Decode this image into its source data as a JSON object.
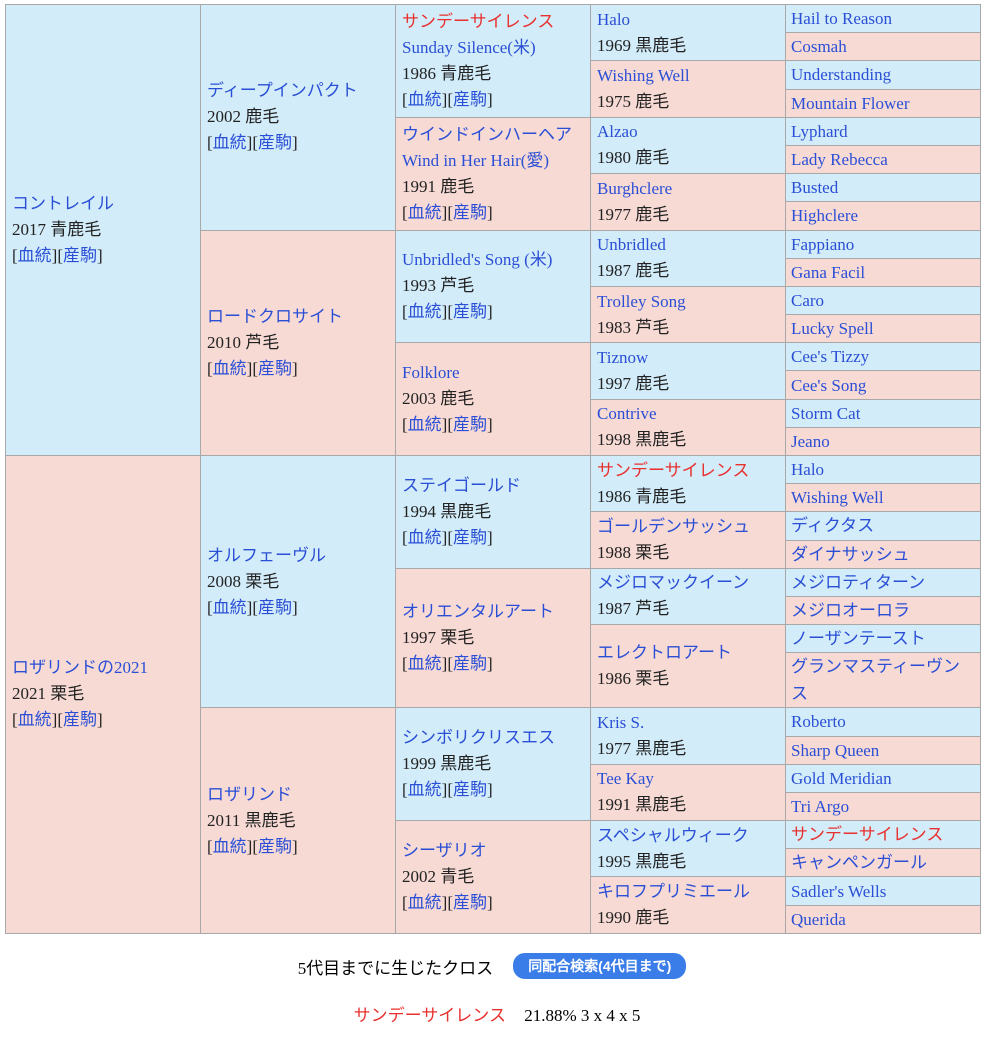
{
  "link_labels": {
    "pedigree": "血統",
    "progeny": "産駒"
  },
  "colors": {
    "male_bg": "#d2ecf9",
    "female_bg": "#f7dad4",
    "link": "#2a4fd6",
    "cross": "#e8302e",
    "button": "#3b7de8"
  },
  "gen1": [
    {
      "name": "コントレイル",
      "info": "2017 青鹿毛"
    },
    {
      "name": "ロザリンドの2021",
      "info": "2021 栗毛"
    }
  ],
  "gen2": [
    {
      "name": "ディープインパクト",
      "info": "2002 鹿毛"
    },
    {
      "name": "ロードクロサイト",
      "info": "2010 芦毛"
    },
    {
      "name": "オルフェーヴル",
      "info": "2008 栗毛"
    },
    {
      "name": "ロザリンド",
      "info": "2011 黒鹿毛"
    }
  ],
  "gen3": [
    {
      "name": "サンデーサイレンス",
      "red": true,
      "sub": "Sunday Silence(米)",
      "info": "1986 青鹿毛"
    },
    {
      "name": "ウインドインハーヘア",
      "sub": "Wind in Her Hair(愛)",
      "info": "1991 鹿毛"
    },
    {
      "name": "Unbridled's Song (米)",
      "info": "1993 芦毛"
    },
    {
      "name": "Folklore",
      "info": "2003 鹿毛"
    },
    {
      "name": "ステイゴールド",
      "info": "1994 黒鹿毛"
    },
    {
      "name": "オリエンタルアート",
      "info": "1997 栗毛"
    },
    {
      "name": "シンボリクリスエス",
      "info": "1999 黒鹿毛"
    },
    {
      "name": "シーザリオ",
      "info": "2002 青毛"
    }
  ],
  "gen4": [
    {
      "name": "Halo",
      "info": "1969 黒鹿毛"
    },
    {
      "name": "Wishing Well",
      "info": "1975 鹿毛"
    },
    {
      "name": "Alzao",
      "info": "1980 鹿毛"
    },
    {
      "name": "Burghclere",
      "info": "1977 鹿毛"
    },
    {
      "name": "Unbridled",
      "info": "1987 鹿毛"
    },
    {
      "name": "Trolley Song",
      "info": "1983 芦毛"
    },
    {
      "name": "Tiznow",
      "info": "1997 鹿毛"
    },
    {
      "name": "Contrive",
      "info": "1998 黒鹿毛"
    },
    {
      "name": "サンデーサイレンス",
      "red": true,
      "info": "1986 青鹿毛"
    },
    {
      "name": "ゴールデンサッシュ",
      "info": "1988 栗毛"
    },
    {
      "name": "メジロマックイーン",
      "info": "1987 芦毛"
    },
    {
      "name": "エレクトロアート",
      "info": "1986 栗毛"
    },
    {
      "name": "Kris S.",
      "info": "1977 黒鹿毛"
    },
    {
      "name": "Tee Kay",
      "info": "1991 黒鹿毛"
    },
    {
      "name": "スペシャルウィーク",
      "info": "1995 黒鹿毛"
    },
    {
      "name": "キロフプリミエール",
      "info": "1990 鹿毛"
    }
  ],
  "gen5": [
    {
      "name": "Hail to Reason"
    },
    {
      "name": "Cosmah"
    },
    {
      "name": "Understanding"
    },
    {
      "name": "Mountain Flower"
    },
    {
      "name": "Lyphard"
    },
    {
      "name": "Lady Rebecca"
    },
    {
      "name": "Busted"
    },
    {
      "name": "Highclere"
    },
    {
      "name": "Fappiano"
    },
    {
      "name": "Gana Facil"
    },
    {
      "name": "Caro"
    },
    {
      "name": "Lucky Spell"
    },
    {
      "name": "Cee's Tizzy"
    },
    {
      "name": "Cee's Song"
    },
    {
      "name": "Storm Cat"
    },
    {
      "name": "Jeano"
    },
    {
      "name": "Halo"
    },
    {
      "name": "Wishing Well"
    },
    {
      "name": "ディクタス"
    },
    {
      "name": "ダイナサッシュ"
    },
    {
      "name": "メジロティターン"
    },
    {
      "name": "メジロオーロラ"
    },
    {
      "name": "ノーザンテースト"
    },
    {
      "name": "グランマスティーヴンス"
    },
    {
      "name": "Roberto"
    },
    {
      "name": "Sharp Queen"
    },
    {
      "name": "Gold Meridian"
    },
    {
      "name": "Tri Argo"
    },
    {
      "name": "サンデーサイレンス",
      "red": true
    },
    {
      "name": "キャンペンガール"
    },
    {
      "name": "Sadler's Wells"
    },
    {
      "name": "Querida"
    }
  ],
  "footer": {
    "cross_heading": "5代目までに生じたクロス",
    "search_button": "同配合検索(4代目まで)",
    "cross_name": "サンデーサイレンス",
    "cross_percent": "21.88%",
    "cross_pattern": "3 x 4 x 5"
  }
}
